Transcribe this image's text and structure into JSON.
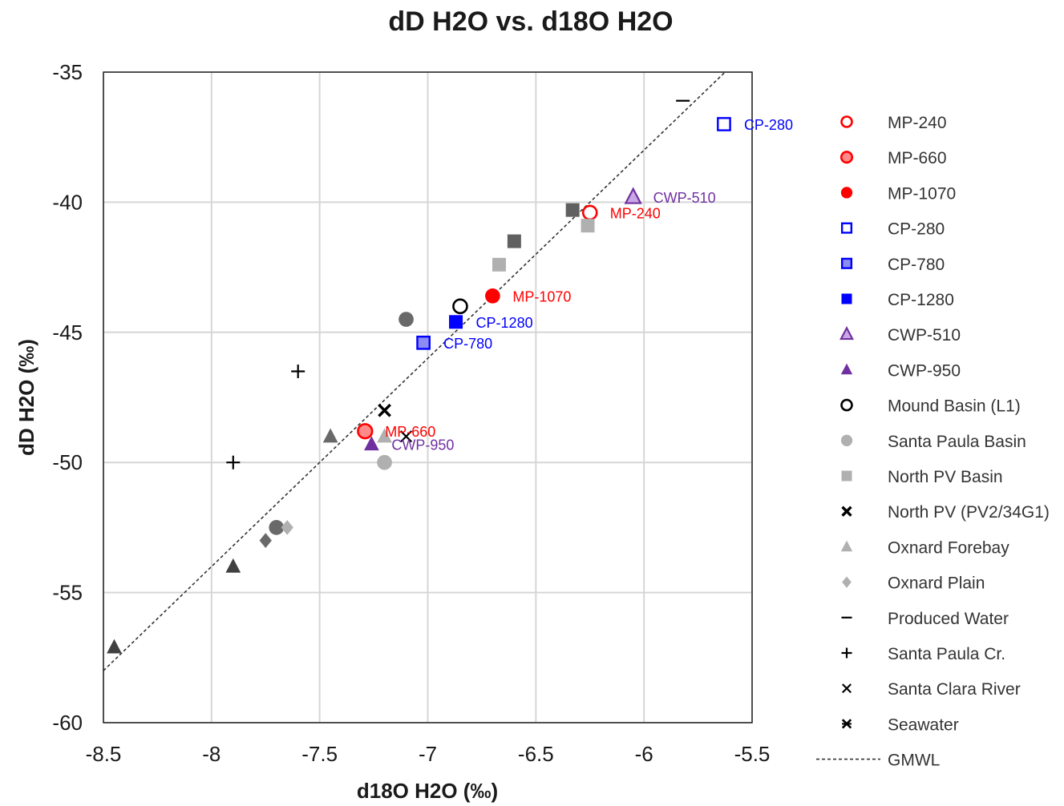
{
  "chart_data": {
    "type": "scatter",
    "title": "dD H2O vs. d18O H2O",
    "xlabel": "d18O H2O (‰)",
    "ylabel": "dD H2O (‰)",
    "xlim": [
      -8.5,
      -5.5
    ],
    "ylim": [
      -60,
      -35
    ],
    "x_ticks": [
      -8.5,
      -8,
      -7.5,
      -7,
      -6.5,
      -6,
      -5.5
    ],
    "x_tick_labels": [
      "-8.5",
      "-8",
      "-7.5",
      "-7",
      "-6.5",
      "-6",
      "-5.5"
    ],
    "y_ticks": [
      -35,
      -40,
      -45,
      -50,
      -55,
      -60
    ],
    "y_tick_labels": [
      "-35",
      "-40",
      "-45",
      "-50",
      "-55",
      "-60"
    ],
    "grid": true,
    "legend_position": "right",
    "series": [
      {
        "name": "MP-240",
        "marker": "circle-open",
        "color": "#ff0000",
        "points": [
          {
            "x": -6.25,
            "y": -40.4,
            "label": "MP-240"
          }
        ]
      },
      {
        "name": "MP-660",
        "marker": "circle-ring",
        "color": "#ff0000",
        "points": [
          {
            "x": -7.29,
            "y": -48.8,
            "label": "MP-660"
          }
        ]
      },
      {
        "name": "MP-1070",
        "marker": "circle",
        "color": "#ff0000",
        "points": [
          {
            "x": -6.7,
            "y": -43.6,
            "label": "MP-1070"
          }
        ]
      },
      {
        "name": "CP-280",
        "marker": "square-open",
        "color": "#0000ff",
        "points": [
          {
            "x": -5.63,
            "y": -37.0,
            "label": "CP-280"
          }
        ]
      },
      {
        "name": "CP-780",
        "marker": "square-mid",
        "color": "#0000ff",
        "points": [
          {
            "x": -7.02,
            "y": -45.4,
            "label": "CP-780"
          }
        ]
      },
      {
        "name": "CP-1280",
        "marker": "square",
        "color": "#0000ff",
        "points": [
          {
            "x": -6.87,
            "y": -44.6,
            "label": "CP-1280"
          }
        ]
      },
      {
        "name": "CWP-510",
        "marker": "triangle-open",
        "color": "#7030a0",
        "points": [
          {
            "x": -6.05,
            "y": -39.8,
            "label": "CWP-510"
          }
        ]
      },
      {
        "name": "CWP-950",
        "marker": "triangle",
        "color": "#7030a0",
        "points": [
          {
            "x": -7.26,
            "y": -49.3,
            "label": "CWP-950"
          }
        ]
      },
      {
        "name": "Mound Basin (L1)",
        "marker": "circle-open",
        "color": "#000000",
        "points": [
          {
            "x": -6.85,
            "y": -44.0
          }
        ]
      },
      {
        "name": "Santa Paula Basin",
        "marker": "circle",
        "color": "#b0b0b0",
        "points": [
          {
            "x": -7.2,
            "y": -50.0
          },
          {
            "x": -7.1,
            "y": -44.5,
            "color": "#696969"
          },
          {
            "x": -7.7,
            "y": -52.5,
            "color": "#696969"
          }
        ]
      },
      {
        "name": "North PV Basin",
        "marker": "square",
        "color": "#b0b0b0",
        "points": [
          {
            "x": -6.67,
            "y": -42.4
          },
          {
            "x": -6.26,
            "y": -40.9
          },
          {
            "x": -6.6,
            "y": -41.5,
            "color": "#606060"
          },
          {
            "x": -6.33,
            "y": -40.3,
            "color": "#606060"
          }
        ]
      },
      {
        "name": "North PV (PV2/34G1)",
        "marker": "xbold",
        "color": "#000000",
        "points": [
          {
            "x": -7.2,
            "y": -48.0
          }
        ]
      },
      {
        "name": "Oxnard Forebay",
        "marker": "triangle",
        "color": "#b0b0b0",
        "points": [
          {
            "x": -7.45,
            "y": -49.0,
            "color": "#696969"
          },
          {
            "x": -7.2,
            "y": -49.0
          },
          {
            "x": -7.9,
            "y": -54.0,
            "color": "#404040"
          },
          {
            "x": -8.45,
            "y": -57.1,
            "color": "#404040"
          }
        ]
      },
      {
        "name": "Oxnard Plain",
        "marker": "diamond",
        "color": "#b0b0b0",
        "points": [
          {
            "x": -7.65,
            "y": -52.5
          },
          {
            "x": -7.75,
            "y": -53.0,
            "color": "#696969"
          }
        ]
      },
      {
        "name": "Produced Water",
        "marker": "dash",
        "color": "#000000",
        "points": [
          {
            "x": -5.82,
            "y": -36.1
          }
        ]
      },
      {
        "name": "Santa Paula Cr.",
        "marker": "plus",
        "color": "#000000",
        "points": [
          {
            "x": -7.6,
            "y": -46.5
          },
          {
            "x": -7.9,
            "y": -50.0
          }
        ]
      },
      {
        "name": "Santa Clara River",
        "marker": "x",
        "color": "#000000",
        "points": [
          {
            "x": -7.1,
            "y": -49.0
          }
        ]
      },
      {
        "name": "Seawater",
        "marker": "xstar",
        "color": "#000000",
        "points": []
      }
    ],
    "reference_lines": [
      {
        "name": "GMWL",
        "style": "dashed",
        "color": "#333333",
        "slope": 8,
        "intercept": 10
      }
    ]
  }
}
